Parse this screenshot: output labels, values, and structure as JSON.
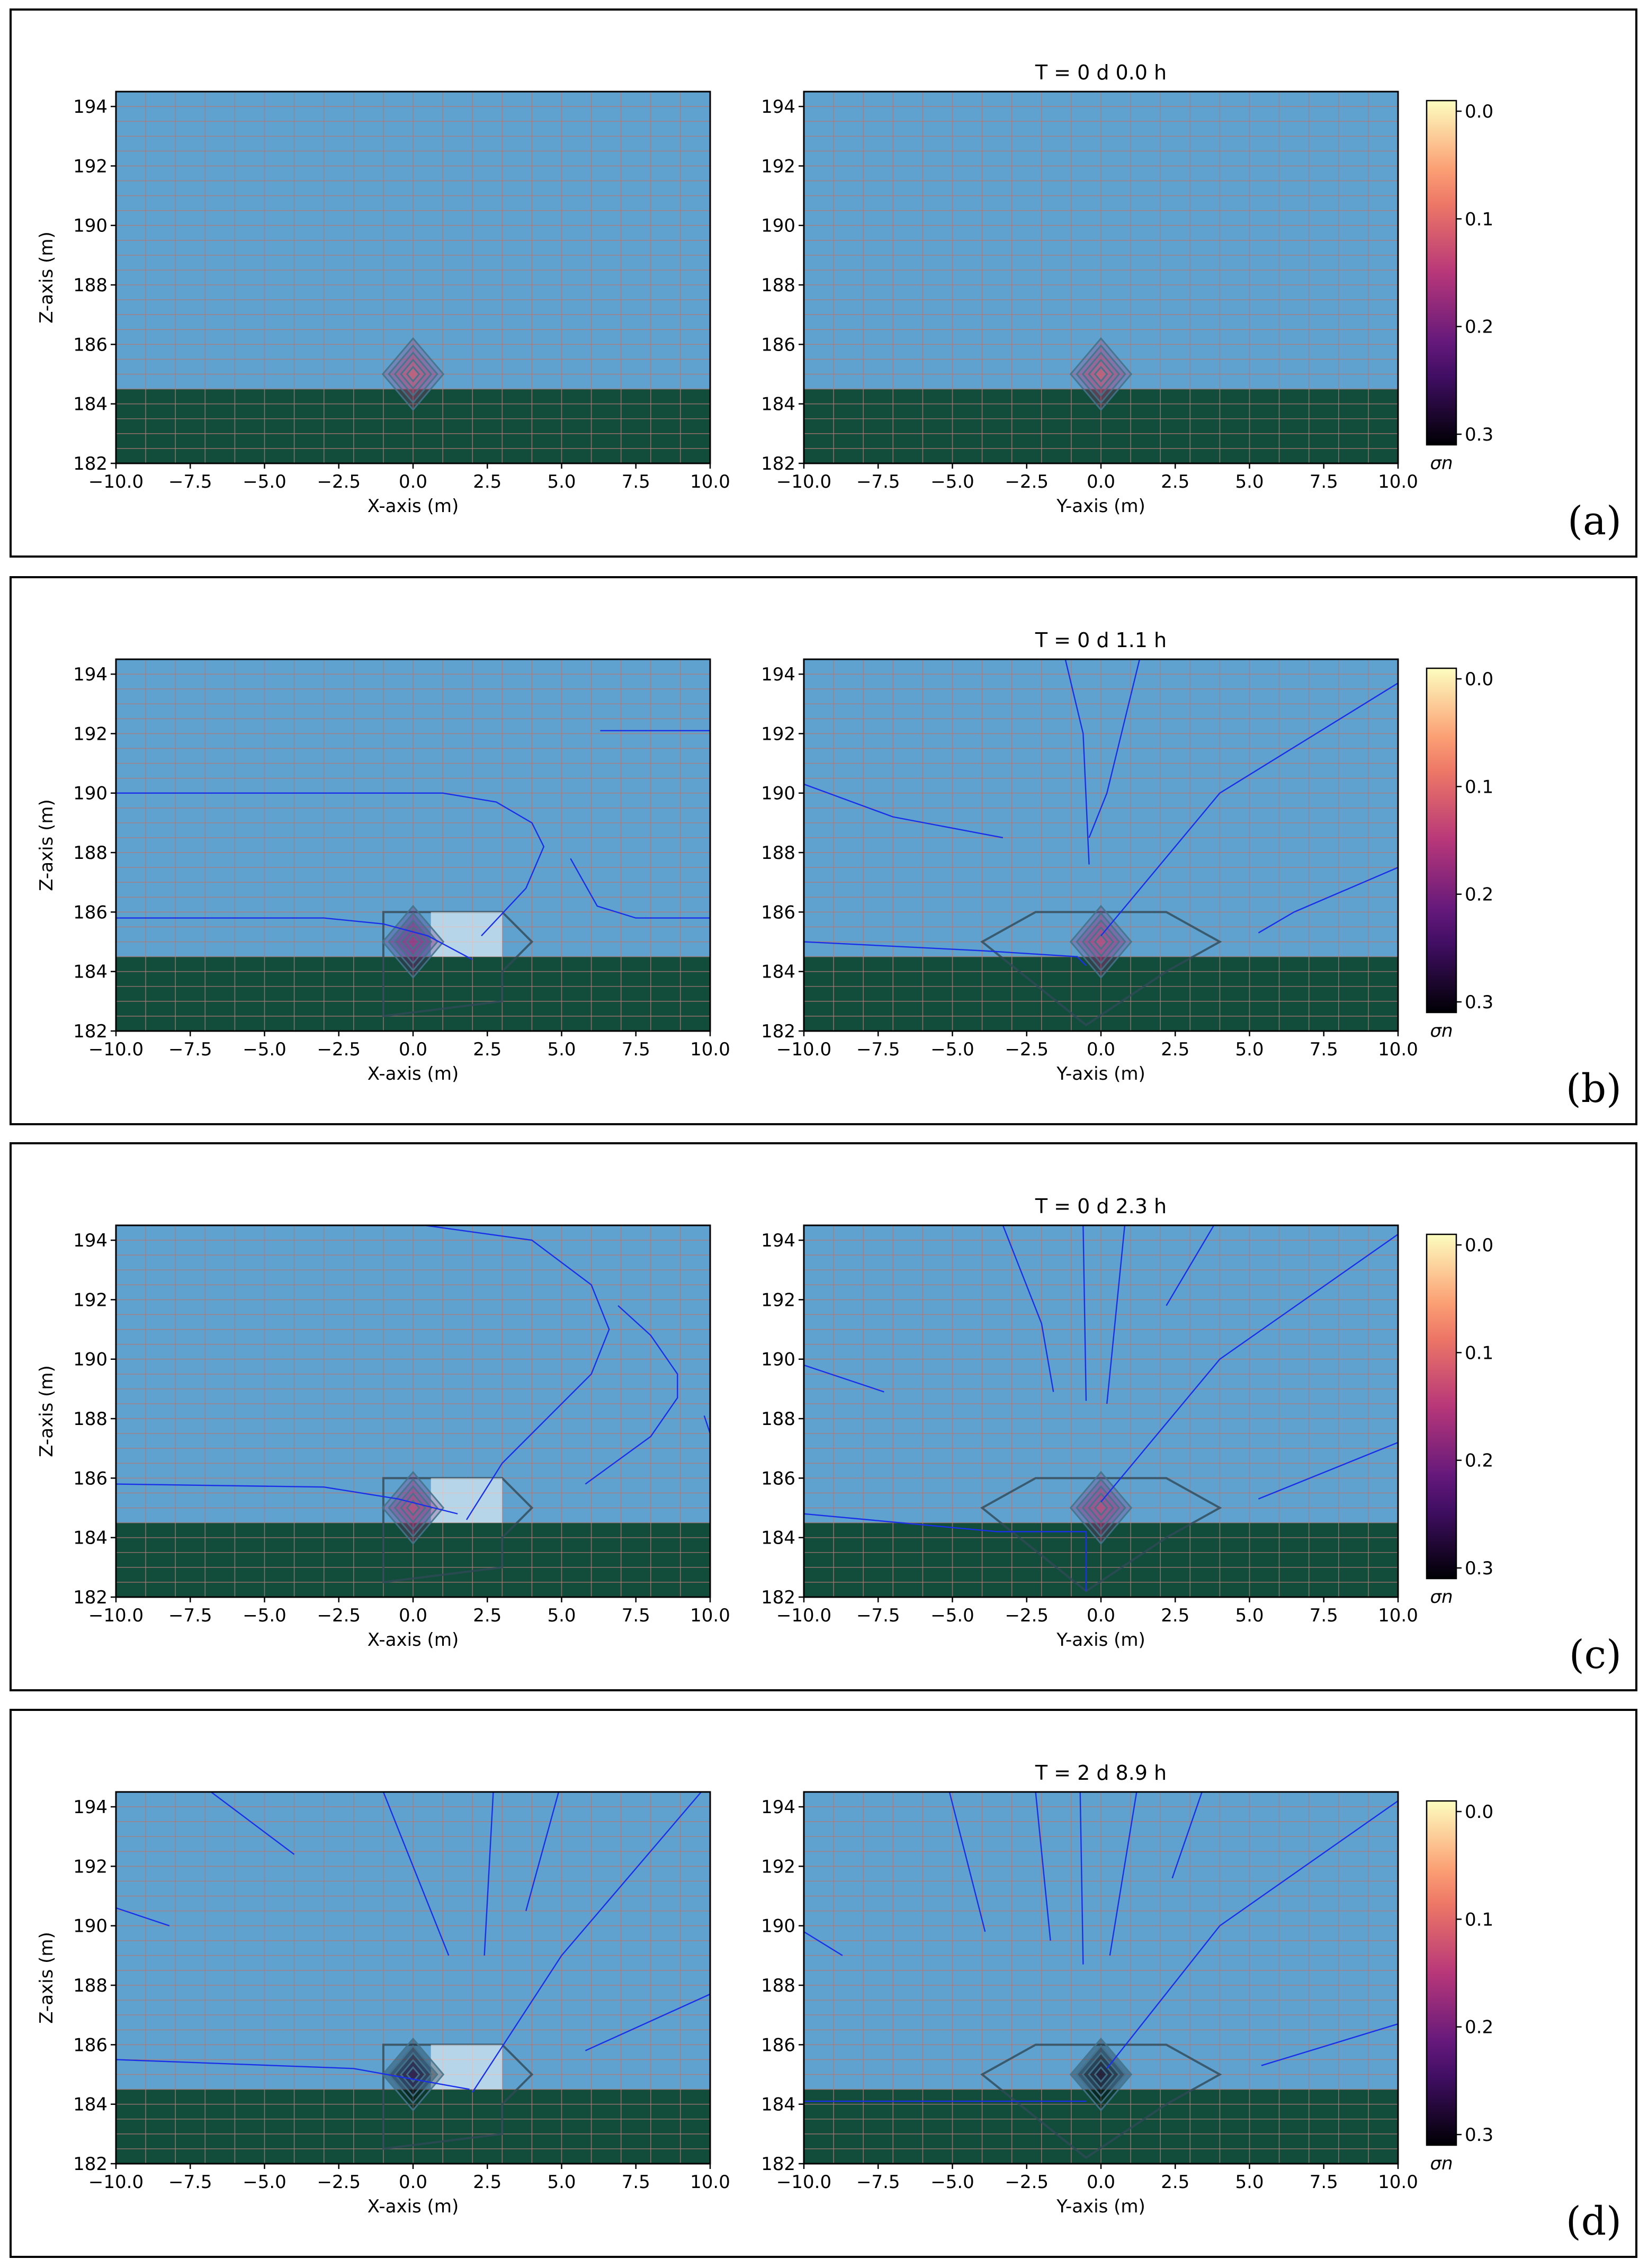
{
  "chart_data": [
    {
      "type": "heatmap",
      "panel_label": "(a)",
      "title": "T = 0 d  0.0 h",
      "left": {
        "xlabel": "X-axis (m)",
        "ylabel": "Z-axis (m)"
      },
      "right": {
        "xlabel": "Y-axis (m)",
        "ylabel": ""
      },
      "xlim": [
        -10,
        10
      ],
      "ylim": [
        182,
        194.5
      ],
      "seabed_z": 184.5,
      "colorbar": {
        "label": "σn",
        "ticks": [
          "0.0",
          "0.1",
          "0.2",
          "0.3"
        ],
        "range": [
          0.0,
          0.3
        ],
        "inverted": true
      },
      "left_blob": {
        "x": 0,
        "z": 185,
        "sigma": 0.1,
        "spread": 0
      },
      "right_blob": {
        "y": 0,
        "z": 185,
        "sigma": 0.1
      },
      "left_streams": [],
      "right_streams": []
    },
    {
      "type": "heatmap",
      "panel_label": "(b)",
      "title": "T = 0 d  1.1 h",
      "left": {
        "xlabel": "X-axis (m)",
        "ylabel": "Z-axis (m)"
      },
      "right": {
        "xlabel": "Y-axis (m)",
        "ylabel": ""
      },
      "xlim": [
        -10,
        10
      ],
      "ylim": [
        182,
        194.5
      ],
      "seabed_z": 184.5,
      "colorbar": {
        "label": "σn",
        "ticks": [
          "0.0",
          "0.1",
          "0.2",
          "0.3"
        ],
        "range": [
          0.0,
          0.3
        ],
        "inverted": true
      },
      "left_blob": {
        "x": 0,
        "z": 185,
        "sigma": 0.15,
        "spread": 2
      },
      "right_blob": {
        "y": 0,
        "z": 185,
        "sigma": 0.12
      },
      "left_streams": [
        [
          [
            -10,
            190
          ],
          [
            -4,
            190
          ],
          [
            1,
            190
          ],
          [
            2.8,
            189.7
          ],
          [
            4,
            189
          ],
          [
            4.4,
            188.2
          ],
          [
            3.8,
            186.8
          ],
          [
            2.3,
            185.2
          ]
        ],
        [
          [
            -10,
            185.8
          ],
          [
            -3,
            185.8
          ],
          [
            -1,
            185.6
          ],
          [
            0.5,
            185.2
          ],
          [
            2,
            184.4
          ]
        ],
        [
          [
            6.3,
            192.1
          ],
          [
            10,
            192.1
          ]
        ],
        [
          [
            5.3,
            187.8
          ],
          [
            6.2,
            186.2
          ],
          [
            7.5,
            185.8
          ],
          [
            10,
            185.8
          ]
        ]
      ],
      "right_streams": [
        [
          [
            -10,
            190.3
          ],
          [
            -7,
            189.2
          ],
          [
            -3.3,
            188.5
          ]
        ],
        [
          [
            -1.2,
            194.5
          ],
          [
            -0.6,
            192
          ],
          [
            -0.4,
            187.6
          ]
        ],
        [
          [
            1.3,
            194.5
          ],
          [
            0.2,
            190
          ],
          [
            -0.4,
            188.5
          ]
        ],
        [
          [
            10,
            193.7
          ],
          [
            4,
            190
          ],
          [
            0,
            185.2
          ]
        ],
        [
          [
            -10,
            185
          ],
          [
            -4,
            184.7
          ],
          [
            -0.8,
            184.5
          ],
          [
            -0.5,
            184.2
          ]
        ],
        [
          [
            5.3,
            185.3
          ],
          [
            6.5,
            186
          ],
          [
            10,
            187.5
          ]
        ]
      ]
    },
    {
      "type": "heatmap",
      "panel_label": "(c)",
      "title": "T = 0 d  2.3 h",
      "left": {
        "xlabel": "X-axis (m)",
        "ylabel": "Z-axis (m)"
      },
      "right": {
        "xlabel": "Y-axis (m)",
        "ylabel": ""
      },
      "xlim": [
        -10,
        10
      ],
      "ylim": [
        182,
        194.5
      ],
      "seabed_z": 184.5,
      "colorbar": {
        "label": "σn",
        "ticks": [
          "0.0",
          "0.1",
          "0.2",
          "0.3"
        ],
        "range": [
          0.0,
          0.3
        ],
        "inverted": true
      },
      "left_blob": {
        "x": 0,
        "z": 185,
        "sigma": 0.12,
        "spread": 2
      },
      "right_blob": {
        "y": 0,
        "z": 185,
        "sigma": 0.12
      },
      "left_streams": [
        [
          [
            0.4,
            194.5
          ],
          [
            4,
            194
          ],
          [
            6,
            192.5
          ],
          [
            6.6,
            191
          ],
          [
            6,
            189.5
          ],
          [
            4.5,
            188
          ],
          [
            3,
            186.5
          ],
          [
            1.8,
            184.6
          ]
        ],
        [
          [
            -10,
            185.8
          ],
          [
            -3,
            185.7
          ],
          [
            -0.5,
            185.3
          ],
          [
            1.5,
            184.8
          ]
        ],
        [
          [
            6.9,
            191.8
          ],
          [
            8,
            190.8
          ],
          [
            8.9,
            189.5
          ],
          [
            8.9,
            188.7
          ],
          [
            8,
            187.4
          ],
          [
            5.8,
            185.8
          ]
        ],
        [
          [
            9.8,
            188.1
          ],
          [
            10,
            187.5
          ]
        ]
      ],
      "right_streams": [
        [
          [
            -10,
            189.8
          ],
          [
            -7.3,
            188.9
          ]
        ],
        [
          [
            -3.3,
            194.5
          ],
          [
            -2,
            191.2
          ],
          [
            -1.6,
            188.9
          ]
        ],
        [
          [
            -0.6,
            194.5
          ],
          [
            -0.5,
            188.6
          ]
        ],
        [
          [
            0.8,
            194.5
          ],
          [
            0.2,
            188.5
          ]
        ],
        [
          [
            3.8,
            194.5
          ],
          [
            2.2,
            191.8
          ]
        ],
        [
          [
            10,
            194.2
          ],
          [
            4,
            190
          ],
          [
            0,
            185.2
          ]
        ],
        [
          [
            -10,
            184.8
          ],
          [
            -3.5,
            184.2
          ],
          [
            -0.5,
            184.2
          ],
          [
            -0.5,
            182.2
          ]
        ],
        [
          [
            5.3,
            185.3
          ],
          [
            10,
            187.2
          ]
        ]
      ]
    },
    {
      "type": "heatmap",
      "panel_label": "(d)",
      "title": "T = 2 d  8.9 h",
      "left": {
        "xlabel": "X-axis (m)",
        "ylabel": "Z-axis (m)"
      },
      "right": {
        "xlabel": "Y-axis (m)",
        "ylabel": ""
      },
      "xlim": [
        -10,
        10
      ],
      "ylim": [
        182,
        194.5
      ],
      "seabed_z": 184.5,
      "colorbar": {
        "label": "σn",
        "ticks": [
          "0.0",
          "0.1",
          "0.2",
          "0.3"
        ],
        "range": [
          0.0,
          0.3
        ],
        "inverted": true
      },
      "left_blob": {
        "x": 0,
        "z": 185,
        "sigma": 0.25,
        "spread": 2
      },
      "right_blob": {
        "y": 0,
        "z": 185,
        "sigma": 0.27
      },
      "left_streams": [
        [
          [
            -10,
            190.6
          ],
          [
            -8.2,
            190
          ]
        ],
        [
          [
            -6.8,
            194.5
          ],
          [
            -4,
            192.4
          ]
        ],
        [
          [
            -1,
            194.5
          ],
          [
            1.2,
            189
          ]
        ],
        [
          [
            2.7,
            194.5
          ],
          [
            2.4,
            189
          ]
        ],
        [
          [
            4.9,
            194.5
          ],
          [
            3.8,
            190.5
          ]
        ],
        [
          [
            9.7,
            194.5
          ],
          [
            5,
            189
          ],
          [
            2,
            184.4
          ]
        ],
        [
          [
            -10,
            185.5
          ],
          [
            -2,
            185.2
          ],
          [
            1.9,
            184.5
          ]
        ],
        [
          [
            5.8,
            185.8
          ],
          [
            10,
            187.7
          ]
        ]
      ],
      "right_streams": [
        [
          [
            -10,
            189.8
          ],
          [
            -8.7,
            189
          ]
        ],
        [
          [
            -5.1,
            194.5
          ],
          [
            -3.9,
            189.8
          ]
        ],
        [
          [
            -2.2,
            194.5
          ],
          [
            -1.7,
            189.5
          ]
        ],
        [
          [
            -0.7,
            194.5
          ],
          [
            -0.6,
            188.7
          ]
        ],
        [
          [
            1.2,
            194.5
          ],
          [
            0.3,
            189
          ]
        ],
        [
          [
            3.4,
            194.5
          ],
          [
            2.4,
            191.6
          ]
        ],
        [
          [
            10,
            194.2
          ],
          [
            4,
            190
          ],
          [
            0.2,
            185.2
          ]
        ],
        [
          [
            -10,
            184.1
          ],
          [
            -0.5,
            184.1
          ]
        ],
        [
          [
            5.4,
            185.3
          ],
          [
            10,
            186.7
          ]
        ]
      ]
    }
  ]
}
